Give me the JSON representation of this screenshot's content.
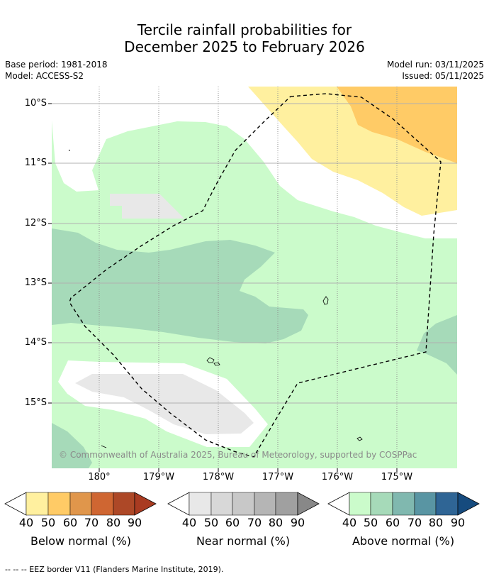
{
  "title": {
    "line1": "Tercile rainfall probabilities for",
    "line2": "December 2025 to February 2026"
  },
  "meta": {
    "base_period": "Base period: 1981-2018",
    "model": "Model: ACCESS-S2",
    "model_run": "Model run: 03/11/2025",
    "issued": "Issued: 05/11/2025"
  },
  "map": {
    "lat_labels": [
      "10°S",
      "11°S",
      "12°S",
      "13°S",
      "14°S",
      "15°S"
    ],
    "lon_labels": [
      "180°",
      "179°W",
      "178°W",
      "177°W",
      "176°W",
      "175°W"
    ],
    "copyright": "© Commonwealth of Australia 2025, Bureau of Meteorology, supported by COSPPac"
  },
  "legend": {
    "below": {
      "label": "Below normal (%)",
      "ticks": [
        "40",
        "50",
        "60",
        "70",
        "80",
        "90"
      ],
      "colors": [
        "#fff09f",
        "#ffcb66",
        "#e0964b",
        "#cf6632",
        "#ad4827",
        "#a93b21"
      ]
    },
    "near": {
      "label": "Near normal (%)",
      "ticks": [
        "40",
        "50",
        "60",
        "70",
        "80",
        "90"
      ],
      "colors": [
        "#e8e8e8",
        "#d8d8d8",
        "#c8c8c8",
        "#b5b5b5",
        "#a0a0a0",
        "#888888"
      ]
    },
    "above": {
      "label": "Above normal (%)",
      "ticks": [
        "40",
        "50",
        "60",
        "70",
        "80",
        "90"
      ],
      "colors": [
        "#cbfbcb",
        "#a6dab9",
        "#80b8af",
        "#5995a3",
        "#2f6595",
        "#164b7e"
      ]
    }
  },
  "footnote": "--  --  -- EEZ border V11 (Flanders Marine Institute, 2019)."
}
